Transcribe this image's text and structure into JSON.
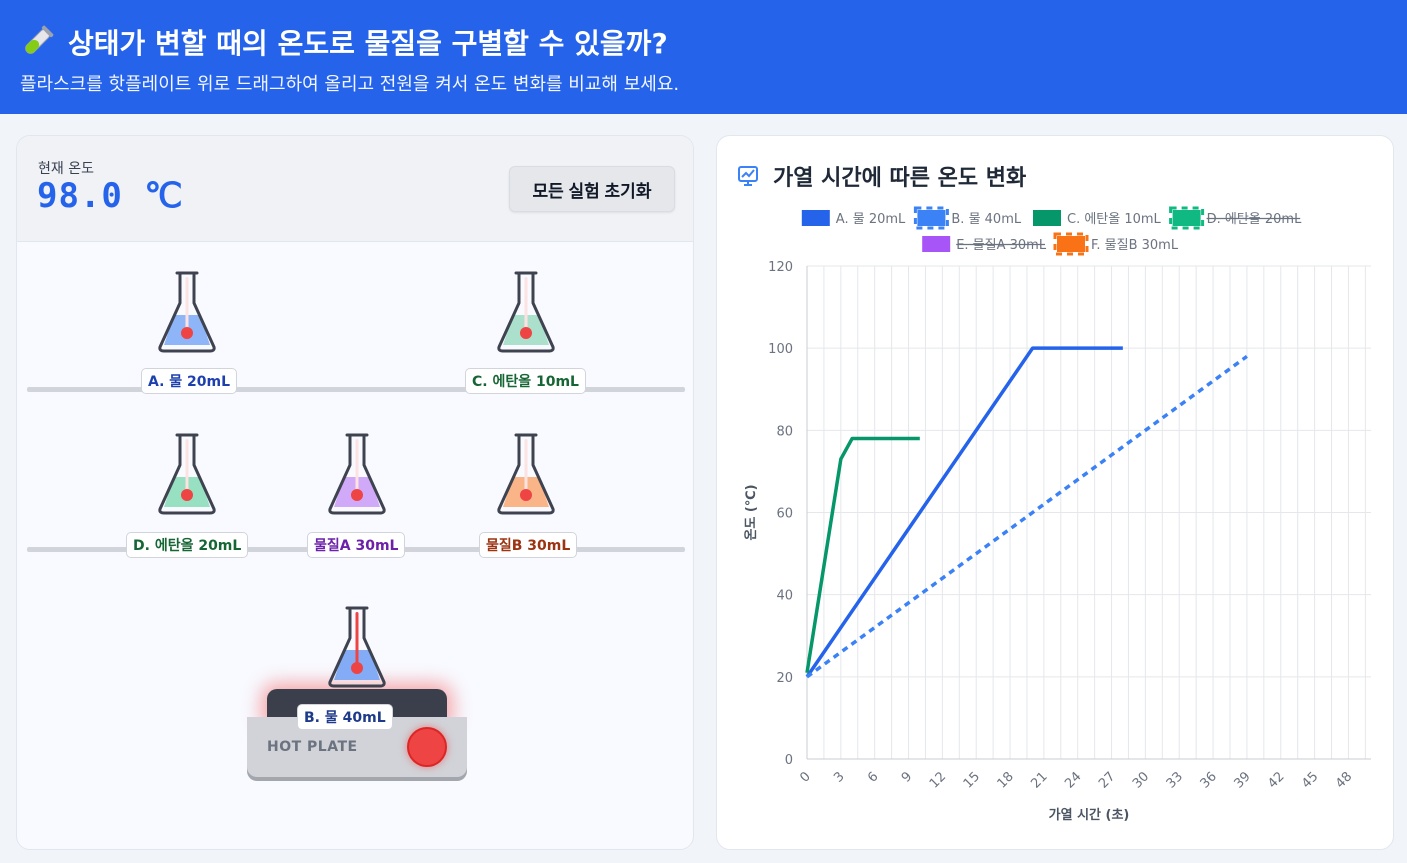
{
  "header": {
    "title": "상태가 변할 때의 온도로 물질을 구별할 수 있을까?",
    "subtitle": "플라스크를 핫플레이트 위로 드래그하여 올리고 전원을 켜서 온도 변화를 비교해 보세요.",
    "icon": "test-tube-icon"
  },
  "status": {
    "label": "현재 온도",
    "value": "98.0 ℃"
  },
  "controls": {
    "reset_label": "모든 실험 초기화"
  },
  "flasks": [
    {
      "id": "A",
      "label": "A. 물 20mL",
      "color": "#7aa8f7",
      "text_color": "#1e40af"
    },
    {
      "id": "C",
      "label": "C. 에탄올 10mL",
      "color": "#9ddcc3",
      "text_color": "#166534"
    },
    {
      "id": "D",
      "label": "D. 에탄올 20mL",
      "color": "#86dbb8",
      "text_color": "#166534"
    },
    {
      "id": "E",
      "label": "물질A 30mL",
      "color": "#c99af8",
      "text_color": "#6b21a8"
    },
    {
      "id": "F",
      "label": "물질B 30mL",
      "color": "#f8a872",
      "text_color": "#9a3412"
    }
  ],
  "hotplate": {
    "label": "HOT PLATE",
    "flask_label": "B. 물 40mL",
    "flask_color": "#6f9ef5",
    "flask_text_color": "#1e3a8a"
  },
  "chart": {
    "title": "가열 시간에 따른 온도 변화",
    "icon": "chart-line-icon"
  },
  "chart_data": {
    "type": "line",
    "xlabel": "가열 시간 (초)",
    "ylabel": "온도 (℃)",
    "xlim": [
      0,
      50
    ],
    "ylim": [
      0,
      120
    ],
    "x_ticks": [
      0,
      3,
      6,
      9,
      12,
      15,
      18,
      21,
      24,
      27,
      30,
      33,
      36,
      39,
      42,
      45,
      48
    ],
    "y_ticks": [
      0,
      20,
      40,
      60,
      80,
      100,
      120
    ],
    "grid": true,
    "legend_position": "top",
    "series": [
      {
        "name": "A. 물 20mL",
        "color": "#2563eb",
        "dashed": false,
        "hidden": false,
        "points": [
          [
            0,
            20
          ],
          [
            20,
            100
          ],
          [
            28,
            100
          ]
        ]
      },
      {
        "name": "B. 물 40mL",
        "color": "#3b82f6",
        "dashed": true,
        "hidden": false,
        "points": [
          [
            0,
            20
          ],
          [
            39,
            98
          ]
        ]
      },
      {
        "name": "C. 에탄올 10mL",
        "color": "#059669",
        "dashed": false,
        "hidden": false,
        "points": [
          [
            0,
            21
          ],
          [
            3,
            73
          ],
          [
            4,
            78
          ],
          [
            10,
            78
          ]
        ]
      },
      {
        "name": "D. 에탄올 20mL",
        "color": "#10b981",
        "dashed": true,
        "hidden": true,
        "points": []
      },
      {
        "name": "E. 물질A 30mL",
        "color": "#a855f7",
        "dashed": false,
        "hidden": true,
        "points": []
      },
      {
        "name": "F. 물질B 30mL",
        "color": "#f97316",
        "dashed": true,
        "hidden": false,
        "points": []
      }
    ]
  }
}
